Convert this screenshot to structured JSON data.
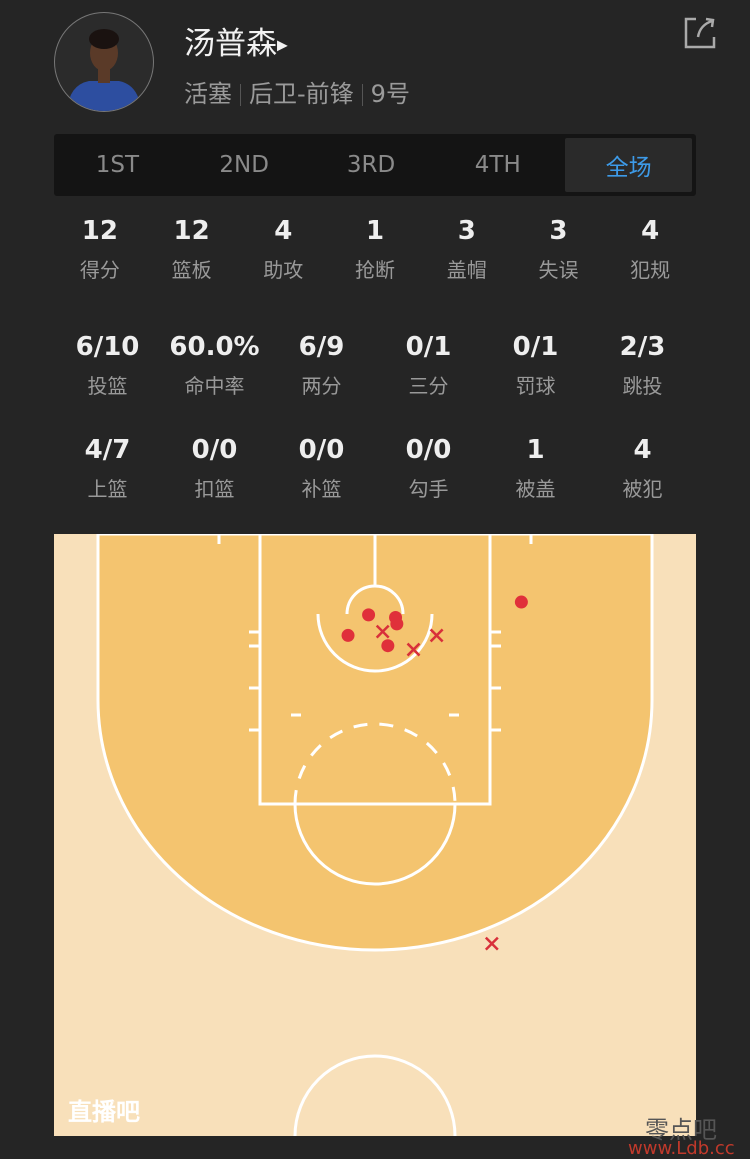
{
  "player": {
    "name": "汤普森",
    "team": "活塞",
    "position": "后卫-前锋",
    "number": "9号"
  },
  "tabs": [
    "1ST",
    "2ND",
    "3RD",
    "4TH",
    "全场"
  ],
  "active_tab": "全场",
  "stats_row1": [
    {
      "v": "12",
      "l": "得分"
    },
    {
      "v": "12",
      "l": "篮板"
    },
    {
      "v": "4",
      "l": "助攻"
    },
    {
      "v": "1",
      "l": "抢断"
    },
    {
      "v": "3",
      "l": "盖帽"
    },
    {
      "v": "3",
      "l": "失误"
    },
    {
      "v": "4",
      "l": "犯规"
    }
  ],
  "stats_row2": [
    {
      "v": "6/10",
      "l": "投篮"
    },
    {
      "v": "60.0%",
      "l": "命中率"
    },
    {
      "v": "6/9",
      "l": "两分"
    },
    {
      "v": "0/1",
      "l": "三分"
    },
    {
      "v": "0/1",
      "l": "罚球"
    },
    {
      "v": "2/3",
      "l": "跳投"
    }
  ],
  "stats_row3": [
    {
      "v": "4/7",
      "l": "上篮"
    },
    {
      "v": "0/0",
      "l": "扣篮"
    },
    {
      "v": "0/0",
      "l": "补篮"
    },
    {
      "v": "0/0",
      "l": "勾手"
    },
    {
      "v": "1",
      "l": "被盖"
    },
    {
      "v": "4",
      "l": "被犯"
    }
  ],
  "shot_chart": {
    "units": "feet from basket center line (x) and baseline (y)",
    "shots": [
      {
        "x": -0.5,
        "y": 6.3,
        "made": true
      },
      {
        "x": 1.6,
        "y": 6.5,
        "made": true
      },
      {
        "x": 1.7,
        "y": 7.0,
        "made": true
      },
      {
        "x": -2.1,
        "y": 7.9,
        "made": true
      },
      {
        "x": 1.0,
        "y": 8.7,
        "made": true
      },
      {
        "x": 11.4,
        "y": 5.3,
        "made": true
      },
      {
        "x": 0.6,
        "y": 7.6,
        "made": false
      },
      {
        "x": 3.0,
        "y": 9.0,
        "made": false
      },
      {
        "x": 4.8,
        "y": 7.9,
        "made": false
      },
      {
        "x": 9.1,
        "y": 31.9,
        "made": false
      }
    ],
    "colors": {
      "made": "#e0303a",
      "missed": "#d8303a",
      "court_light": "#f8e0ba",
      "court_dark": "#f4c46f"
    }
  },
  "logo": "直播吧",
  "watermark": {
    "text": "零点吧",
    "url": "www.Ldb.cc"
  }
}
